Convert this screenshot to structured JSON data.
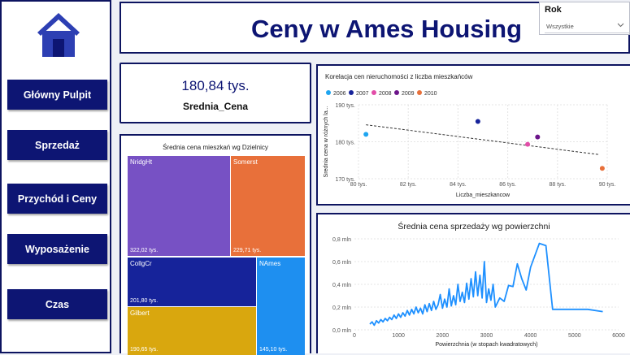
{
  "sidebar": {
    "logo_icon": "home-icon",
    "items": [
      {
        "label": "Główny Pulpit"
      },
      {
        "label": "Sprzedaż"
      },
      {
        "label": "Przychód i Ceny"
      },
      {
        "label": "Wyposażenie"
      },
      {
        "label": "Czas"
      }
    ]
  },
  "header": {
    "title": "Ceny w Ames Housing"
  },
  "slicer": {
    "title": "Rok",
    "selected": "Wszystkie",
    "icon": "chevron-down-icon"
  },
  "kpi": {
    "value": "180,84 tys.",
    "label": "Srednia_Cena"
  },
  "colors": {
    "navy": "#0d1573",
    "y2006": "#1ea5f0",
    "y2007": "#16239a",
    "y2008": "#e24da8",
    "y2009": "#6c158a",
    "y2010": "#e8703a",
    "line": "#1e90ff"
  },
  "chart_data": [
    {
      "type": "treemap",
      "title": "Średnia cena mieszkań wg Dzielnicy",
      "items": [
        {
          "name": "NridgHt",
          "value": 322.02,
          "label": "322,02 tys.",
          "color": "#7751c4"
        },
        {
          "name": "Somerst",
          "value": 229.71,
          "label": "229,71 tys.",
          "color": "#e8703a"
        },
        {
          "name": "CollgCr",
          "value": 201.8,
          "label": "201,80 tys.",
          "color": "#16239a"
        },
        {
          "name": "NAmes",
          "value": 145.1,
          "label": "145,10 tys.",
          "color": "#1e8ff0"
        },
        {
          "name": "Gilbert",
          "value": 190.65,
          "label": "190,65 tys.",
          "color": "#d9a70e"
        }
      ]
    },
    {
      "type": "scatter",
      "title": "Korelacja cen nieruchomości z liczba mieszkańców",
      "xlabel": "Liczba_mieszkancow",
      "ylabel": "Srednia cena w różnych la...",
      "xlim": [
        80,
        90
      ],
      "ylim": [
        170,
        190
      ],
      "x_ticks": [
        "80 tys.",
        "82 tys.",
        "84 tys.",
        "86 tys.",
        "88 tys.",
        "90 tys."
      ],
      "y_ticks": [
        "170 tys.",
        "180 tys.",
        "190 tys."
      ],
      "legend": [
        {
          "name": "2006",
          "color": "#1ea5f0"
        },
        {
          "name": "2007",
          "color": "#16239a"
        },
        {
          "name": "2008",
          "color": "#e24da8"
        },
        {
          "name": "2009",
          "color": "#6c158a"
        },
        {
          "name": "2010",
          "color": "#e8703a"
        }
      ],
      "points": [
        {
          "series": "2006",
          "x": 80.3,
          "y": 182.0
        },
        {
          "series": "2007",
          "x": 84.8,
          "y": 185.5
        },
        {
          "series": "2008",
          "x": 86.8,
          "y": 179.3
        },
        {
          "series": "2009",
          "x": 87.2,
          "y": 181.3
        },
        {
          "series": "2010",
          "x": 89.8,
          "y": 172.8
        }
      ],
      "trend": [
        {
          "x": 80.3,
          "y": 184.6
        },
        {
          "x": 89.7,
          "y": 176.5
        }
      ]
    },
    {
      "type": "line",
      "title": "Średnia cena sprzedaży wg powierzchni",
      "xlabel": "Powierzchnia (w stopach kwadratowych)",
      "ylabel": "",
      "xlim": [
        0,
        6000
      ],
      "ylim": [
        0,
        0.8
      ],
      "x_ticks": [
        "0",
        "1000",
        "2000",
        "3000",
        "4000",
        "5000",
        "6000"
      ],
      "y_ticks": [
        "0,0 mln",
        "0,2 mln",
        "0,4 mln",
        "0,6 mln",
        "0,8 mln"
      ],
      "points": [
        [
          350,
          0.05
        ],
        [
          400,
          0.07
        ],
        [
          450,
          0.04
        ],
        [
          500,
          0.08
        ],
        [
          550,
          0.06
        ],
        [
          600,
          0.09
        ],
        [
          650,
          0.07
        ],
        [
          700,
          0.1
        ],
        [
          750,
          0.08
        ],
        [
          800,
          0.11
        ],
        [
          850,
          0.09
        ],
        [
          900,
          0.13
        ],
        [
          950,
          0.1
        ],
        [
          1000,
          0.14
        ],
        [
          1050,
          0.11
        ],
        [
          1100,
          0.15
        ],
        [
          1150,
          0.12
        ],
        [
          1200,
          0.17
        ],
        [
          1250,
          0.13
        ],
        [
          1300,
          0.18
        ],
        [
          1350,
          0.14
        ],
        [
          1400,
          0.2
        ],
        [
          1450,
          0.15
        ],
        [
          1500,
          0.19
        ],
        [
          1550,
          0.14
        ],
        [
          1600,
          0.22
        ],
        [
          1650,
          0.16
        ],
        [
          1700,
          0.23
        ],
        [
          1750,
          0.17
        ],
        [
          1800,
          0.25
        ],
        [
          1850,
          0.18
        ],
        [
          1900,
          0.22
        ],
        [
          1950,
          0.31
        ],
        [
          2000,
          0.19
        ],
        [
          2050,
          0.27
        ],
        [
          2100,
          0.2
        ],
        [
          2150,
          0.36
        ],
        [
          2200,
          0.21
        ],
        [
          2250,
          0.3
        ],
        [
          2300,
          0.22
        ],
        [
          2350,
          0.4
        ],
        [
          2400,
          0.25
        ],
        [
          2450,
          0.33
        ],
        [
          2500,
          0.24
        ],
        [
          2550,
          0.41
        ],
        [
          2600,
          0.27
        ],
        [
          2650,
          0.45
        ],
        [
          2700,
          0.29
        ],
        [
          2750,
          0.51
        ],
        [
          2800,
          0.3
        ],
        [
          2850,
          0.48
        ],
        [
          2900,
          0.28
        ],
        [
          2950,
          0.6
        ],
        [
          3000,
          0.24
        ],
        [
          3050,
          0.36
        ],
        [
          3100,
          0.26
        ],
        [
          3150,
          0.4
        ],
        [
          3200,
          0.2
        ],
        [
          3300,
          0.28
        ],
        [
          3400,
          0.25
        ],
        [
          3500,
          0.39
        ],
        [
          3600,
          0.38
        ],
        [
          3700,
          0.58
        ],
        [
          3800,
          0.45
        ],
        [
          3900,
          0.35
        ],
        [
          4000,
          0.55
        ],
        [
          4200,
          0.76
        ],
        [
          4350,
          0.74
        ],
        [
          4500,
          0.18
        ],
        [
          4700,
          0.18
        ],
        [
          5000,
          0.18
        ],
        [
          5300,
          0.18
        ],
        [
          5640,
          0.16
        ]
      ]
    }
  ]
}
